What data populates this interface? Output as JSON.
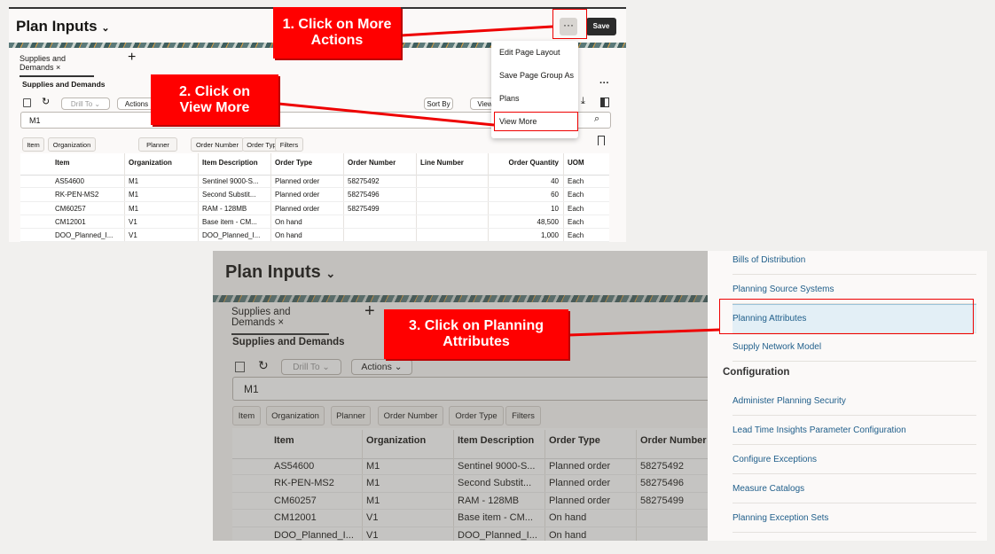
{
  "page_title": "Plan Inputs",
  "header": {
    "more_actions_icon": "ellipsis-icon",
    "save_label": "Save"
  },
  "tab": {
    "label": "Supplies and Demands",
    "close": "×",
    "add": "+"
  },
  "section_title": "Supplies and Demands",
  "toolbar": {
    "drill_to": "Drill To",
    "actions": "Actions",
    "sort_by": "Sort By",
    "view": "View"
  },
  "search": {
    "value": "M1"
  },
  "filters": [
    "Item",
    "Organization",
    "Planner",
    "Order Number",
    "Order Type",
    "Filters"
  ],
  "table": {
    "columns": [
      "Item",
      "Organization",
      "Item Description",
      "Order Type",
      "Order Number",
      "Line Number",
      "Order Quantity",
      "UOM"
    ],
    "rows": [
      [
        "AS54600",
        "M1",
        "Sentinel 9000-S...",
        "Planned order",
        "58275492",
        "",
        "40",
        "Each"
      ],
      [
        "RK-PEN-MS2",
        "M1",
        "Second Substit...",
        "Planned order",
        "58275496",
        "",
        "60",
        "Each"
      ],
      [
        "CM60257",
        "M1",
        "RAM - 128MB",
        "Planned order",
        "58275499",
        "",
        "10",
        "Each"
      ],
      [
        "CM12001",
        "V1",
        "Base item - CM...",
        "On hand",
        "",
        "",
        "48,500",
        "Each"
      ],
      [
        "DOO_Planned_I...",
        "V1",
        "DOO_Planned_I...",
        "On hand",
        "",
        "",
        "1,000",
        "Each"
      ]
    ]
  },
  "more_menu": [
    "Edit Page Layout",
    "Save Page Group As",
    "Plans",
    "View More"
  ],
  "drawer": {
    "items_top": [
      "Bills of Distribution",
      "Planning Source Systems",
      "Planning Attributes",
      "Supply Network Model"
    ],
    "configuration_heading": "Configuration",
    "items_config": [
      "Administer Planning Security",
      "Lead Time Insights Parameter Configuration",
      "Configure Exceptions",
      "Measure Catalogs",
      "Planning Exception Sets"
    ]
  },
  "callouts": {
    "step1": "1. Click on More Actions",
    "step2": "2. Click on View More",
    "step3": "3. Click on Planning Attributes"
  },
  "colors": {
    "callout": "#ff0000",
    "link": "#1f5e8a",
    "selected": "#e3eff6",
    "save": "#2b2b2b"
  }
}
